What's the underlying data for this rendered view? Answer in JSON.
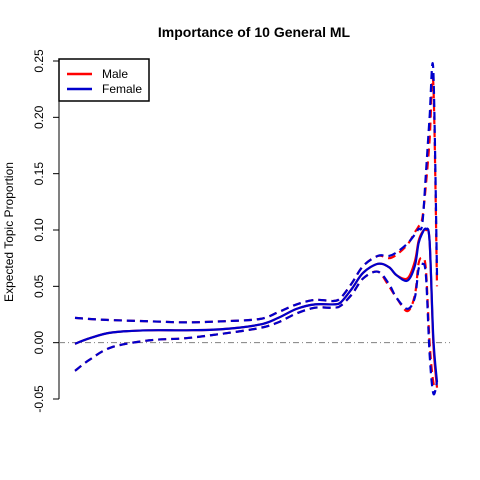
{
  "chart_data": {
    "type": "line",
    "title": "Importance of 10 General ML",
    "ylabel": "Expected Topic Proportion",
    "xlabel": "",
    "ylim": [
      -0.05,
      0.25
    ],
    "yticks": [
      "-0.05",
      "0.00",
      "0.05",
      "0.10",
      "0.15",
      "0.20",
      "0.25"
    ],
    "ytick_values": [
      -0.05,
      0.0,
      0.05,
      0.1,
      0.15,
      0.2,
      0.25
    ],
    "reference_line": 0.0,
    "x_range": [
      0,
      100
    ],
    "legend": {
      "placement": "top-left"
    },
    "colors": {
      "Male": "#ff0000",
      "Female": "#0000cc",
      "reference": "#808080"
    },
    "series": [
      {
        "name": "Male",
        "x": [
          0,
          4,
          10,
          20,
          30,
          40,
          50,
          55,
          60,
          65,
          70,
          72,
          75,
          78,
          82,
          85,
          87,
          90,
          92,
          93,
          94,
          95,
          96,
          97,
          98
        ],
        "mean": [
          -0.001,
          0.004,
          0.009,
          0.011,
          0.011,
          0.012,
          0.016,
          0.022,
          0.03,
          0.034,
          0.034,
          0.036,
          0.048,
          0.062,
          0.07,
          0.067,
          0.06,
          0.057,
          0.072,
          0.09,
          0.098,
          0.1,
          0.09,
          0.0,
          -0.04
        ],
        "lower": [
          -0.025,
          -0.015,
          -0.004,
          0.002,
          0.004,
          0.008,
          0.013,
          0.018,
          0.026,
          0.031,
          0.031,
          0.033,
          0.043,
          0.057,
          0.063,
          0.05,
          0.04,
          0.028,
          0.042,
          0.07,
          0.075,
          0.065,
          0.0,
          -0.035,
          -0.04
        ],
        "upper": [
          0.022,
          0.021,
          0.02,
          0.019,
          0.018,
          0.019,
          0.021,
          0.027,
          0.034,
          0.038,
          0.037,
          0.04,
          0.053,
          0.068,
          0.077,
          0.075,
          0.078,
          0.087,
          0.098,
          0.103,
          0.11,
          0.14,
          0.18,
          0.23,
          0.05
        ]
      },
      {
        "name": "Female",
        "x": [
          0,
          4,
          10,
          20,
          30,
          40,
          50,
          55,
          60,
          65,
          70,
          72,
          75,
          78,
          82,
          85,
          87,
          90,
          92,
          93,
          94,
          95,
          96,
          97,
          98
        ],
        "mean": [
          -0.001,
          0.004,
          0.009,
          0.011,
          0.011,
          0.012,
          0.016,
          0.022,
          0.03,
          0.034,
          0.034,
          0.036,
          0.048,
          0.062,
          0.07,
          0.067,
          0.06,
          0.055,
          0.068,
          0.088,
          0.097,
          0.101,
          0.09,
          0.005,
          -0.035
        ],
        "lower": [
          -0.025,
          -0.015,
          -0.004,
          0.002,
          0.004,
          0.008,
          0.013,
          0.018,
          0.026,
          0.031,
          0.031,
          0.033,
          0.043,
          0.057,
          0.063,
          0.052,
          0.04,
          0.03,
          0.04,
          0.065,
          0.07,
          0.06,
          -0.01,
          -0.045,
          -0.035
        ],
        "upper": [
          0.022,
          0.021,
          0.02,
          0.019,
          0.018,
          0.019,
          0.021,
          0.027,
          0.034,
          0.038,
          0.037,
          0.04,
          0.053,
          0.068,
          0.077,
          0.077,
          0.08,
          0.088,
          0.096,
          0.101,
          0.105,
          0.15,
          0.2,
          0.242,
          0.06
        ]
      }
    ]
  }
}
